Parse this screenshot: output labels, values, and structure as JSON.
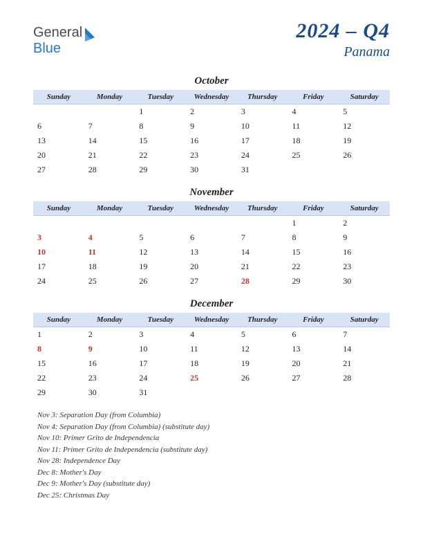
{
  "logo": {
    "part1": "General",
    "part2": "Blue"
  },
  "title": {
    "main": "2024 – Q4",
    "sub": "Panama"
  },
  "colors": {
    "header_bg": "#d8e4f5",
    "holiday_text": "#c83030",
    "title_color": "#1a4a8a",
    "logo_blue": "#2878c8"
  },
  "day_headers": [
    "Sunday",
    "Monday",
    "Tuesday",
    "Wednesday",
    "Thursday",
    "Friday",
    "Saturday"
  ],
  "months": [
    {
      "name": "October",
      "weeks": [
        [
          "",
          "",
          "1",
          "2",
          "3",
          "4",
          "5"
        ],
        [
          "6",
          "7",
          "8",
          "9",
          "10",
          "11",
          "12"
        ],
        [
          "13",
          "14",
          "15",
          "16",
          "17",
          "18",
          "19"
        ],
        [
          "20",
          "21",
          "22",
          "23",
          "24",
          "25",
          "26"
        ],
        [
          "27",
          "28",
          "29",
          "30",
          "31",
          "",
          ""
        ]
      ],
      "holidays": []
    },
    {
      "name": "November",
      "weeks": [
        [
          "",
          "",
          "",
          "",
          "",
          "1",
          "2"
        ],
        [
          "3",
          "4",
          "5",
          "6",
          "7",
          "8",
          "9"
        ],
        [
          "10",
          "11",
          "12",
          "13",
          "14",
          "15",
          "16"
        ],
        [
          "17",
          "18",
          "19",
          "20",
          "21",
          "22",
          "23"
        ],
        [
          "24",
          "25",
          "26",
          "27",
          "28",
          "29",
          "30"
        ]
      ],
      "holidays": [
        "3",
        "4",
        "10",
        "11",
        "28"
      ]
    },
    {
      "name": "December",
      "weeks": [
        [
          "1",
          "2",
          "3",
          "4",
          "5",
          "6",
          "7"
        ],
        [
          "8",
          "9",
          "10",
          "11",
          "12",
          "13",
          "14"
        ],
        [
          "15",
          "16",
          "17",
          "18",
          "19",
          "20",
          "21"
        ],
        [
          "22",
          "23",
          "24",
          "25",
          "26",
          "27",
          "28"
        ],
        [
          "29",
          "30",
          "31",
          "",
          "",
          "",
          ""
        ]
      ],
      "holidays": [
        "8",
        "9",
        "25"
      ]
    }
  ],
  "holiday_list": [
    "Nov 3: Separation Day (from Columbia)",
    "Nov 4: Separation Day (from Columbia) (substitute day)",
    "Nov 10: Primer Grito de Independencia",
    "Nov 11: Primer Grito de Independencia (substitute day)",
    "Nov 28: Independence Day",
    "Dec 8: Mother's Day",
    "Dec 9: Mother's Day (substitute day)",
    "Dec 25: Christmas Day"
  ]
}
